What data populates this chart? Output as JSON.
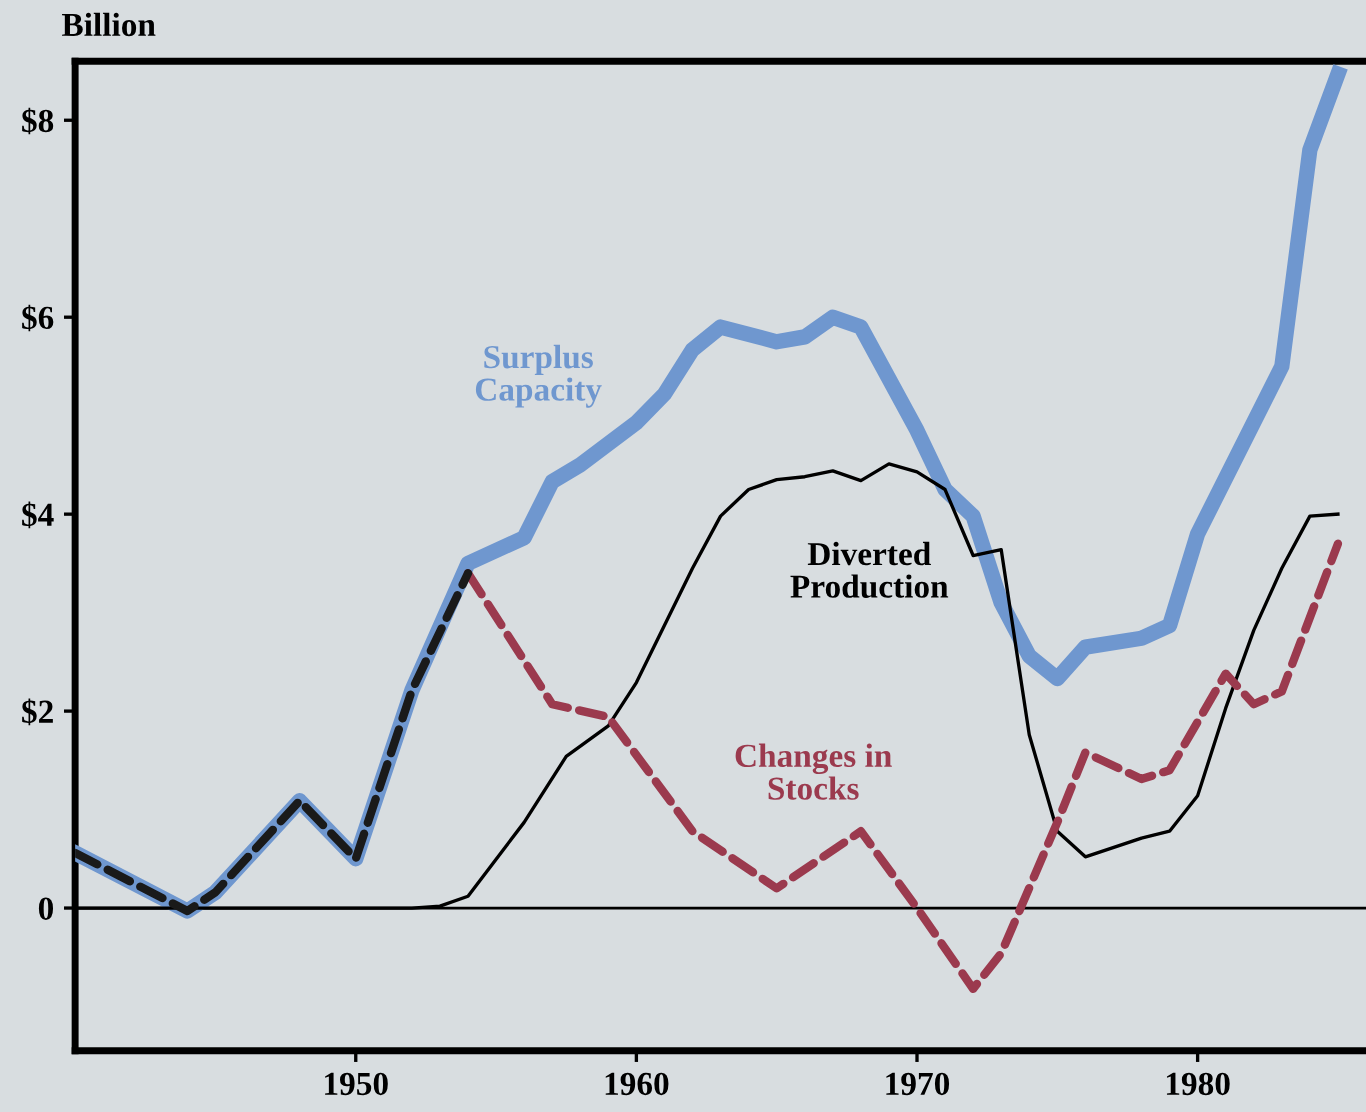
{
  "chart_data": {
    "type": "line",
    "ylabel": "Billion",
    "xlim": [
      1940,
      1986
    ],
    "ylim": [
      -1.45,
      8.6
    ],
    "xticks": [
      1950,
      1960,
      1970,
      1980
    ],
    "yticks": [
      {
        "value": 0,
        "label": "0"
      },
      {
        "value": 2,
        "label": "$2"
      },
      {
        "value": 4,
        "label": "$4"
      },
      {
        "value": 6,
        "label": "$6"
      },
      {
        "value": 8,
        "label": "$8"
      }
    ],
    "grid": false,
    "legend": false,
    "ref_lines": [
      {
        "axis": "y",
        "value": 0,
        "color": "#000000",
        "line_style": "solid"
      }
    ],
    "series": [
      {
        "name": "Surplus Capacity",
        "color": "#6f97cf",
        "line_style": "solid",
        "x": [
          1940,
          1944,
          1945,
          1948,
          1950,
          1952,
          1954,
          1956,
          1957,
          1958,
          1960,
          1961,
          1962,
          1963,
          1965,
          1966,
          1967,
          1968,
          1970,
          1971,
          1972,
          1973,
          1974,
          1975,
          1976,
          1978,
          1979,
          1980,
          1983,
          1984,
          1985
        ],
        "values": [
          0.56,
          -0.03,
          0.16,
          1.09,
          0.5,
          2.21,
          3.5,
          3.76,
          4.33,
          4.5,
          4.93,
          5.22,
          5.67,
          5.9,
          5.75,
          5.8,
          6.0,
          5.9,
          4.85,
          4.25,
          3.98,
          3.1,
          2.56,
          2.33,
          2.65,
          2.74,
          2.87,
          3.8,
          5.5,
          7.7,
          8.47
        ]
      },
      {
        "name": "Diverted Production",
        "color": "#000000",
        "line_style": "solid",
        "x": [
          1940,
          1952,
          1953,
          1954,
          1956,
          1957.5,
          1959,
          1960,
          1962,
          1963,
          1964,
          1965,
          1966,
          1967,
          1968,
          1969,
          1970,
          1971,
          1972,
          1973,
          1974,
          1975,
          1976,
          1978,
          1979,
          1980,
          1981,
          1982,
          1983,
          1984,
          1985
        ],
        "values": [
          0,
          0,
          0.02,
          0.12,
          0.87,
          1.54,
          1.85,
          2.29,
          3.45,
          3.98,
          4.25,
          4.35,
          4.38,
          4.44,
          4.34,
          4.51,
          4.43,
          4.25,
          3.58,
          3.64,
          1.76,
          0.78,
          0.52,
          0.71,
          0.78,
          1.14,
          2.03,
          2.82,
          3.45,
          3.98,
          4.0
        ]
      },
      {
        "name": "Changes in Stocks",
        "color": "#9b3a4e",
        "line_style": "dashed",
        "x": [
          1954,
          1957,
          1959,
          1962,
          1965,
          1968,
          1970,
          1972,
          1973,
          1975,
          1976,
          1978,
          1979,
          1981,
          1982,
          1983,
          1985
        ],
        "values": [
          3.4,
          2.07,
          1.94,
          0.78,
          0.2,
          0.78,
          0,
          -0.82,
          -0.46,
          0.87,
          1.58,
          1.31,
          1.4,
          2.38,
          2.07,
          2.2,
          3.7
        ]
      },
      {
        "color": "#1a1a1a",
        "line_style": "dashed",
        "x": [
          1940,
          1944,
          1945,
          1948,
          1950,
          1952,
          1954
        ],
        "values": [
          0.56,
          -0.03,
          0.16,
          1.09,
          0.5,
          2.21,
          3.4
        ]
      }
    ]
  }
}
